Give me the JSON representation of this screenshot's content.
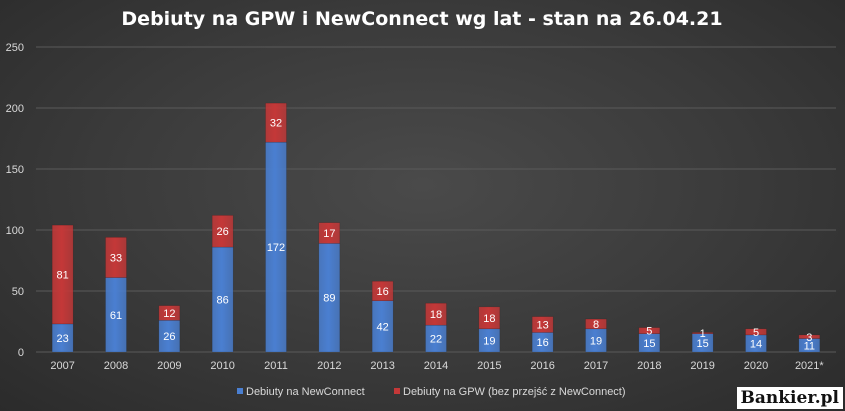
{
  "watermark": "Bankier.pl",
  "colors": {
    "newconnect": "#4a7fd1",
    "gpw": "#c43838",
    "label": "#ffffff"
  },
  "chart_data": {
    "type": "bar",
    "stacked": true,
    "title": "Debiuty na GPW i NewConnect wg lat - stan na 26.04.21",
    "xlabel": "",
    "ylabel": "",
    "ylim": [
      0,
      250
    ],
    "yticks": [
      0,
      50,
      100,
      150,
      200,
      250
    ],
    "grid": true,
    "legend_position": "bottom",
    "categories": [
      "2007",
      "2008",
      "2009",
      "2010",
      "2011",
      "2012",
      "2013",
      "2014",
      "2015",
      "2016",
      "2017",
      "2018",
      "2019",
      "2020",
      "2021*"
    ],
    "series": [
      {
        "name": "Debiuty na NewConnect",
        "color": "#4a7fd1",
        "values": [
          23,
          61,
          26,
          86,
          172,
          89,
          42,
          22,
          19,
          16,
          19,
          15,
          15,
          14,
          11
        ]
      },
      {
        "name": "Debiuty na GPW (bez przejść z NewConnect)",
        "color": "#c43838",
        "values": [
          81,
          33,
          12,
          26,
          32,
          17,
          16,
          18,
          18,
          13,
          8,
          5,
          1,
          5,
          3
        ]
      }
    ]
  }
}
